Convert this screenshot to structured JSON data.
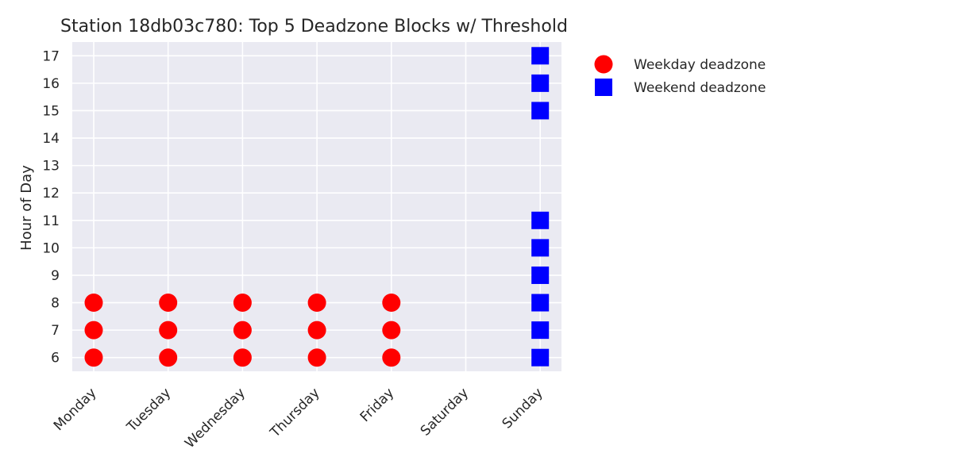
{
  "chart_data": {
    "type": "scatter",
    "title": "Station 18db03c780: Top 5 Deadzone Blocks w/ Threshold",
    "xlabel": "",
    "ylabel": "Hour of Day",
    "categories": [
      "Monday",
      "Tuesday",
      "Wednesday",
      "Thursday",
      "Friday",
      "Saturday",
      "Sunday"
    ],
    "ylim": [
      5.5,
      17.5
    ],
    "yticks": [
      6,
      7,
      8,
      9,
      10,
      11,
      12,
      13,
      14,
      15,
      16,
      17
    ],
    "grid": true,
    "legend_position": "outside-right",
    "series": [
      {
        "name": "Weekday deadzone",
        "marker": "circle",
        "color": "#ff0000",
        "points": [
          {
            "x": "Monday",
            "y": 6
          },
          {
            "x": "Monday",
            "y": 7
          },
          {
            "x": "Monday",
            "y": 8
          },
          {
            "x": "Tuesday",
            "y": 6
          },
          {
            "x": "Tuesday",
            "y": 7
          },
          {
            "x": "Tuesday",
            "y": 8
          },
          {
            "x": "Wednesday",
            "y": 6
          },
          {
            "x": "Wednesday",
            "y": 7
          },
          {
            "x": "Wednesday",
            "y": 8
          },
          {
            "x": "Thursday",
            "y": 6
          },
          {
            "x": "Thursday",
            "y": 7
          },
          {
            "x": "Thursday",
            "y": 8
          },
          {
            "x": "Friday",
            "y": 6
          },
          {
            "x": "Friday",
            "y": 7
          },
          {
            "x": "Friday",
            "y": 8
          }
        ]
      },
      {
        "name": "Weekend deadzone",
        "marker": "square",
        "color": "#0000ff",
        "points": [
          {
            "x": "Sunday",
            "y": 6
          },
          {
            "x": "Sunday",
            "y": 7
          },
          {
            "x": "Sunday",
            "y": 8
          },
          {
            "x": "Sunday",
            "y": 9
          },
          {
            "x": "Sunday",
            "y": 10
          },
          {
            "x": "Sunday",
            "y": 11
          },
          {
            "x": "Sunday",
            "y": 15
          },
          {
            "x": "Sunday",
            "y": 16
          },
          {
            "x": "Sunday",
            "y": 17
          }
        ]
      }
    ],
    "colors": {
      "plot_background": "#eaeaf2",
      "grid": "#ffffff",
      "text": "#262626"
    }
  }
}
